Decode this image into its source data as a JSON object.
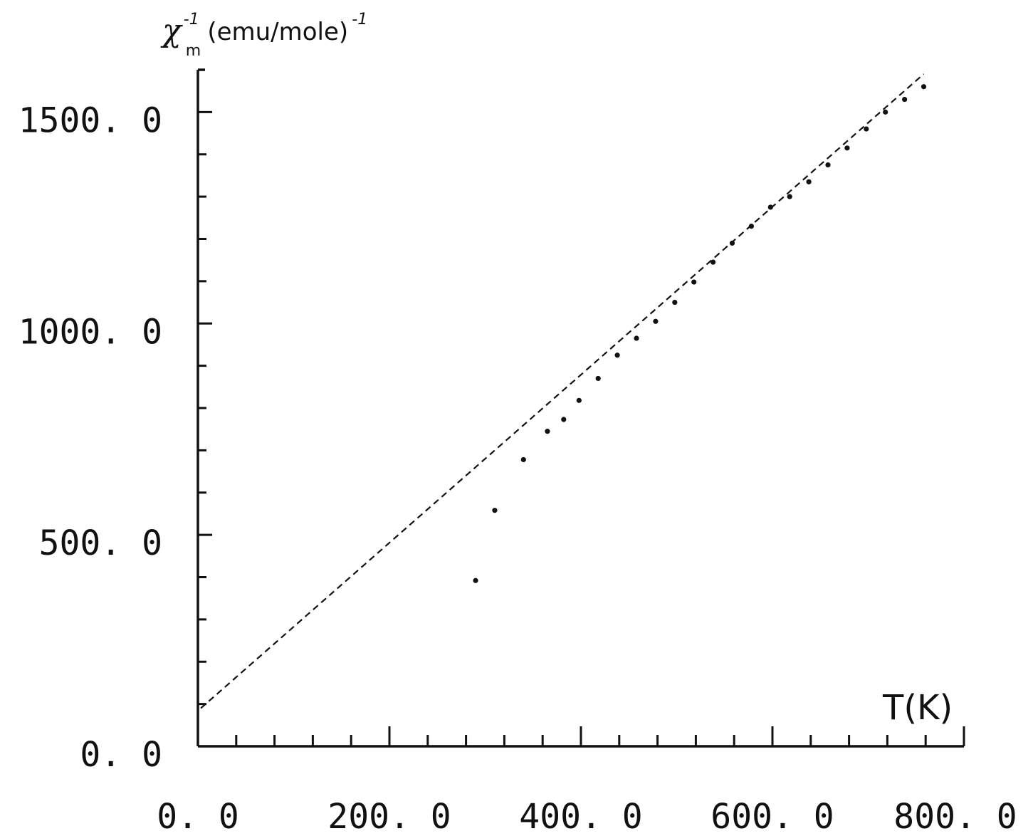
{
  "chart_data": {
    "type": "scatter",
    "title": "",
    "xlabel": "T(K)",
    "ylabel": {
      "symbol": "χ",
      "subscript": "m",
      "superscript": "-1",
      "unit": "(emu/mole)",
      "unit_superscript": "-1"
    },
    "xlim": [
      0,
      800
    ],
    "ylim": [
      0,
      1600
    ],
    "x_ticks": [
      {
        "value": 0,
        "label": "0. 0"
      },
      {
        "value": 200,
        "label": "200. 0"
      },
      {
        "value": 400,
        "label": "400. 0"
      },
      {
        "value": 600,
        "label": "600. 0"
      },
      {
        "value": 800,
        "label": "800. 0"
      }
    ],
    "y_ticks": [
      {
        "value": 0,
        "label": "0. 0"
      },
      {
        "value": 500,
        "label": "500. 0"
      },
      {
        "value": 1000,
        "label": "1000. 0"
      },
      {
        "value": 1500,
        "label": "1500. 0"
      }
    ],
    "x_minor_step": 40,
    "y_minor_step": 100,
    "grid": false,
    "series": [
      {
        "kind": "points",
        "x": [
          290,
          310,
          340,
          365,
          382,
          398,
          418,
          438,
          458,
          478,
          498,
          518,
          538,
          558,
          578,
          598,
          618,
          638,
          658,
          678,
          698,
          718,
          738,
          758
        ],
        "y": [
          392,
          558,
          678,
          745,
          773,
          818,
          870,
          925,
          965,
          1005,
          1050,
          1098,
          1145,
          1190,
          1230,
          1275,
          1300,
          1335,
          1375,
          1415,
          1460,
          1500,
          1530,
          1560
        ]
      },
      {
        "kind": "dashed-line",
        "x": [
          3,
          758
        ],
        "y": [
          90,
          1590
        ]
      }
    ]
  }
}
